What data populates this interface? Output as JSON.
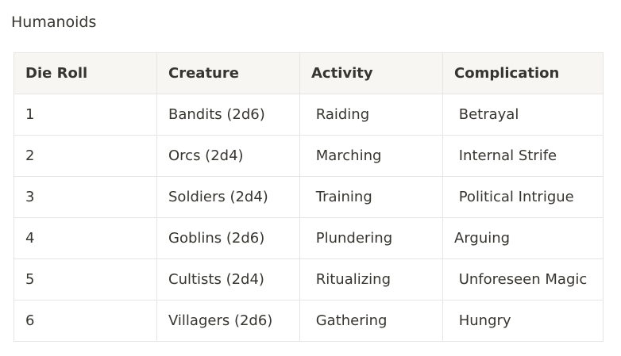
{
  "title": "Humanoids",
  "table": {
    "headers": [
      "Die Roll",
      "Creature",
      "Activity",
      "Complication"
    ],
    "rows": [
      [
        "1",
        "Bandits (2d6)",
        " Raiding",
        " Betrayal"
      ],
      [
        "2",
        "Orcs (2d4)",
        " Marching",
        " Internal Strife"
      ],
      [
        "3",
        "Soldiers (2d4)",
        " Training",
        " Political Intrigue"
      ],
      [
        "4",
        "Goblins (2d6)",
        " Plundering",
        "Arguing"
      ],
      [
        "5",
        "Cultists (2d4)",
        " Ritualizing",
        " Unforeseen Magic"
      ],
      [
        "6",
        "Villagers (2d6)",
        " Gathering",
        " Hungry"
      ]
    ]
  }
}
